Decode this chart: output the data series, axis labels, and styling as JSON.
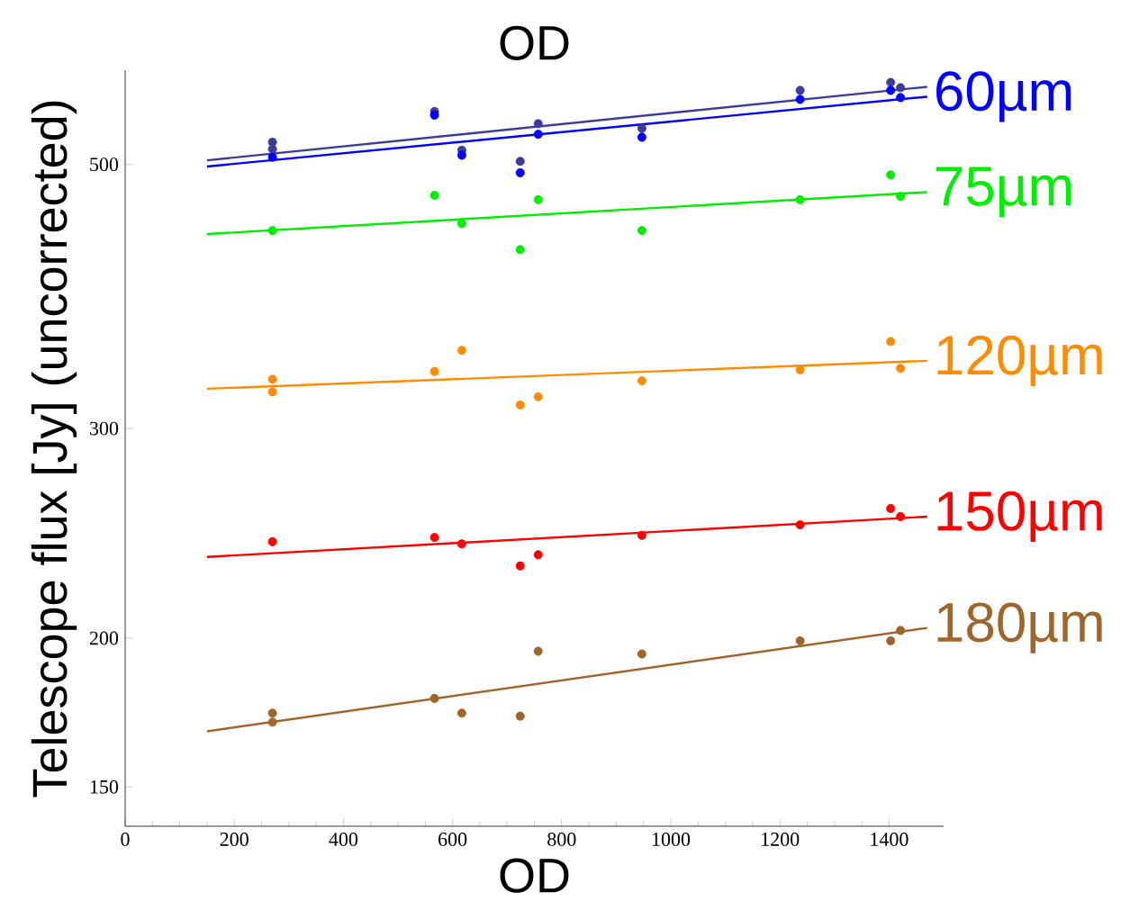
{
  "chart_data": {
    "type": "scatter",
    "title": "OD",
    "xlabel": "OD",
    "ylabel": "Telescope flux [Jy] (uncorrected)",
    "log": "y",
    "marker": "circle",
    "xlim": [
      0,
      1500
    ],
    "xticks": [
      0,
      200,
      400,
      600,
      800,
      1000,
      1200,
      1400
    ],
    "ylim": [
      139,
      600
    ],
    "yticks": [
      150,
      200,
      300,
      500
    ],
    "series": [
      {
        "color": "#3d3d99",
        "x": [
          270,
          270,
          567,
          617,
          724,
          757,
          947,
          1237,
          1403,
          1421
        ],
        "values": [
          522,
          515,
          554,
          514,
          503,
          541,
          536,
          577,
          586,
          580
        ]
      },
      {
        "color": "#0000ff",
        "x": [
          270,
          567,
          617,
          724,
          757,
          947,
          1237,
          1403,
          1421
        ],
        "values": [
          507,
          550,
          509,
          492,
          530,
          527,
          567,
          577,
          569
        ]
      },
      {
        "color": "#00ee00",
        "x": [
          270,
          567,
          617,
          724,
          757,
          947,
          1237,
          1403,
          1421
        ],
        "values": [
          440,
          471,
          446,
          424,
          467,
          440,
          467,
          490,
          470
        ]
      },
      {
        "color": "#ff8c00",
        "x": [
          270,
          270,
          567,
          617,
          724,
          757,
          947,
          1237,
          1403,
          1421
        ],
        "values": [
          330,
          322,
          335,
          349,
          314,
          319,
          329,
          336,
          355,
          337
        ]
      },
      {
        "color": "#ff0000",
        "x": [
          270,
          567,
          617,
          724,
          757,
          947,
          1237,
          1403,
          1421
        ],
        "values": [
          241,
          243,
          240,
          230,
          235,
          244,
          249,
          257,
          253
        ]
      },
      {
        "color": "#a0652a",
        "x": [
          270,
          270,
          567,
          617,
          724,
          757,
          947,
          1237,
          1403,
          1421
        ],
        "values": [
          173,
          170,
          178,
          173,
          172,
          195,
          194,
          199,
          199,
          203
        ]
      },
      {
        "type": "line",
        "marker": "none",
        "color": "#3d3d99",
        "x": [
          150,
          1470
        ],
        "values": [
          504,
          581
        ]
      },
      {
        "type": "line",
        "marker": "none",
        "name": "60µm",
        "color": "#0000ff",
        "x": [
          150,
          1470
        ],
        "values": [
          498,
          570
        ]
      },
      {
        "type": "line",
        "marker": "none",
        "name": "75µm",
        "color": "#00ee00",
        "x": [
          150,
          1470
        ],
        "values": [
          437,
          474
        ]
      },
      {
        "type": "line",
        "marker": "none",
        "name": "120µm",
        "color": "#ff8c00",
        "x": [
          150,
          1470
        ],
        "values": [
          324,
          342
        ]
      },
      {
        "type": "line",
        "marker": "none",
        "name": "150µm",
        "color": "#ff0000",
        "x": [
          150,
          1470
        ],
        "values": [
          234,
          253
        ]
      },
      {
        "type": "line",
        "marker": "none",
        "name": "180µm",
        "color": "#a0652a",
        "x": [
          150,
          1470
        ],
        "values": [
          167,
          204
        ]
      }
    ]
  }
}
